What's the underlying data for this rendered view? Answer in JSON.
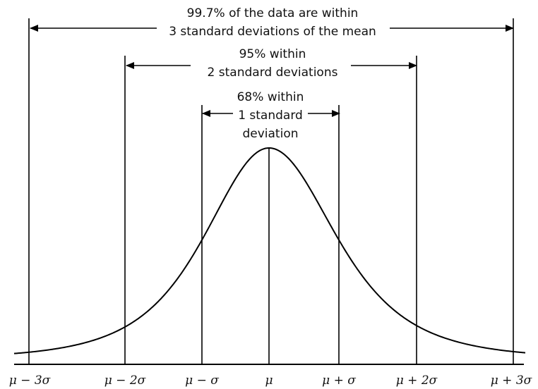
{
  "annotations": {
    "three_sd": [
      "99.7% of the data are within",
      "3 standard deviations of the mean"
    ],
    "two_sd": [
      "95% within",
      "2 standard deviations"
    ],
    "one_sd": [
      "68% within",
      "1 standard",
      "deviation"
    ]
  },
  "x_axis": {
    "tick_labels": [
      "μ − 3σ",
      "μ − 2σ",
      "μ − σ",
      "μ",
      "μ + σ",
      "μ + 2σ",
      "μ + 3σ"
    ]
  },
  "colors": {
    "line": "#000000",
    "text": "#111111"
  }
}
